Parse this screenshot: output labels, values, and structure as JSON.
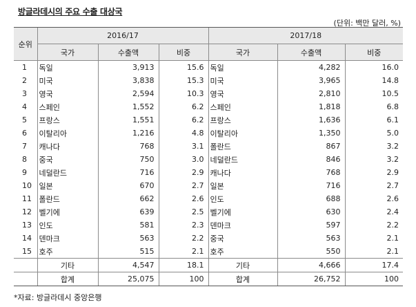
{
  "title": "방글라데시의 주요 수출 대상국",
  "unit": "(단위: 백만 달러, %)",
  "headers": {
    "rank": "순위",
    "period_a": "2016/17",
    "period_b": "2017/18",
    "country": "국가",
    "exports": "수출액",
    "share": "비중"
  },
  "rows": [
    {
      "rank": "1",
      "a_country": "독일",
      "a_exports": "3,913",
      "a_share": "15.6",
      "b_country": "독일",
      "b_exports": "4,282",
      "b_share": "16.0"
    },
    {
      "rank": "2",
      "a_country": "미국",
      "a_exports": "3,838",
      "a_share": "15.3",
      "b_country": "미국",
      "b_exports": "3,965",
      "b_share": "14.8"
    },
    {
      "rank": "3",
      "a_country": "영국",
      "a_exports": "2,594",
      "a_share": "10.3",
      "b_country": "영국",
      "b_exports": "2,810",
      "b_share": "10.5"
    },
    {
      "rank": "4",
      "a_country": "스페인",
      "a_exports": "1,552",
      "a_share": "6.2",
      "b_country": "스페인",
      "b_exports": "1,818",
      "b_share": "6.8"
    },
    {
      "rank": "5",
      "a_country": "프랑스",
      "a_exports": "1,551",
      "a_share": "6.2",
      "b_country": "프랑스",
      "b_exports": "1,636",
      "b_share": "6.1"
    },
    {
      "rank": "6",
      "a_country": "이탈리아",
      "a_exports": "1,216",
      "a_share": "4.8",
      "b_country": "이탈리아",
      "b_exports": "1,350",
      "b_share": "5.0"
    },
    {
      "rank": "7",
      "a_country": "캐나다",
      "a_exports": "768",
      "a_share": "3.1",
      "b_country": "폴란드",
      "b_exports": "867",
      "b_share": "3.2"
    },
    {
      "rank": "8",
      "a_country": "중국",
      "a_exports": "750",
      "a_share": "3.0",
      "b_country": "네덜란드",
      "b_exports": "846",
      "b_share": "3.2"
    },
    {
      "rank": "9",
      "a_country": "네덜란드",
      "a_exports": "716",
      "a_share": "2.9",
      "b_country": "캐나다",
      "b_exports": "768",
      "b_share": "2.9"
    },
    {
      "rank": "10",
      "a_country": "일본",
      "a_exports": "670",
      "a_share": "2.7",
      "b_country": "일본",
      "b_exports": "716",
      "b_share": "2.7"
    },
    {
      "rank": "11",
      "a_country": "폴란드",
      "a_exports": "662",
      "a_share": "2.6",
      "b_country": "인도",
      "b_exports": "688",
      "b_share": "2.6"
    },
    {
      "rank": "12",
      "a_country": "벨기에",
      "a_exports": "639",
      "a_share": "2.5",
      "b_country": "벨기에",
      "b_exports": "630",
      "b_share": "2.4"
    },
    {
      "rank": "13",
      "a_country": "인도",
      "a_exports": "581",
      "a_share": "2.3",
      "b_country": "덴마크",
      "b_exports": "597",
      "b_share": "2.2"
    },
    {
      "rank": "14",
      "a_country": "덴마크",
      "a_exports": "563",
      "a_share": "2.2",
      "b_country": "중국",
      "b_exports": "563",
      "b_share": "2.1"
    },
    {
      "rank": "15",
      "a_country": "호주",
      "a_exports": "515",
      "a_share": "2.1",
      "b_country": "호주",
      "b_exports": "550",
      "b_share": "2.1"
    }
  ],
  "other": {
    "label": "기타",
    "a_exports": "4,547",
    "a_share": "18.1",
    "b_exports": "4,666",
    "b_share": "17.4"
  },
  "total": {
    "label": "합계",
    "a_exports": "25,075",
    "a_share": "100",
    "b_exports": "26,752",
    "b_share": "100"
  },
  "footnote": "*자료: 방글라데시 중앙은행"
}
